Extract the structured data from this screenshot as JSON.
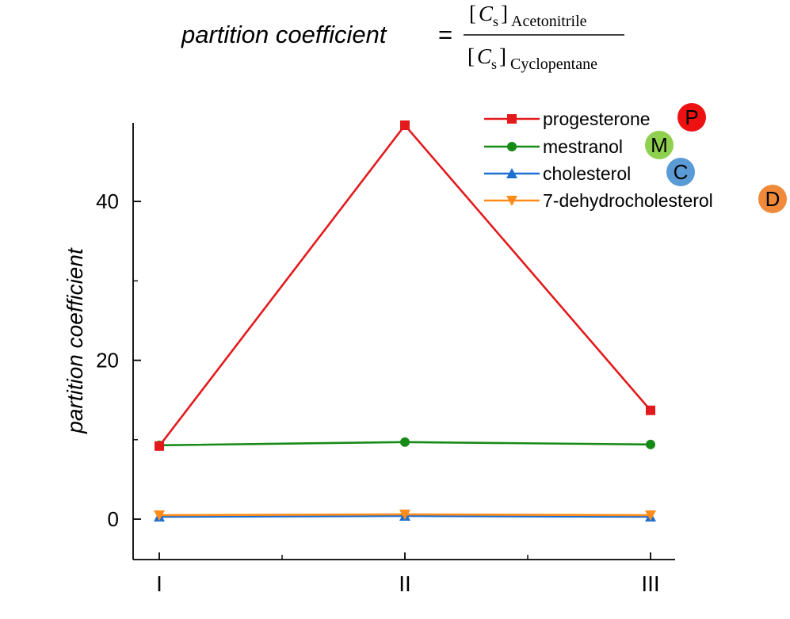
{
  "formula": {
    "lhs": "partition coefficient",
    "equals": "=",
    "numerator_var": "C",
    "numerator_sub": "s",
    "numerator_solvent": "Acetonitrile",
    "denominator_var": "C",
    "denominator_sub": "s",
    "denominator_solvent": "Cyclopentane"
  },
  "chart_data": {
    "type": "line",
    "title": "",
    "xlabel": "",
    "ylabel": "partition coefficient",
    "categories": [
      "I",
      "II",
      "III"
    ],
    "ylim": [
      -5,
      50
    ],
    "yticks": [
      0,
      20,
      40
    ],
    "ytick_labels": [
      "0",
      "20",
      "40"
    ],
    "grid": false,
    "legend_position": "top-right",
    "series": [
      {
        "name": "progesterone",
        "badge": "P",
        "color": "#e31a1c",
        "badge_color": "#ee1111",
        "marker": "square",
        "values": [
          9.2,
          49.6,
          13.7
        ]
      },
      {
        "name": "mestranol",
        "badge": "M",
        "color": "#168a16",
        "badge_color": "#8fd14f",
        "marker": "circle",
        "values": [
          9.3,
          9.7,
          9.4
        ]
      },
      {
        "name": "cholesterol",
        "badge": "C",
        "color": "#1f6fd1",
        "badge_color": "#5b9bd5",
        "marker": "triangle-up",
        "values": [
          0.3,
          0.4,
          0.3
        ]
      },
      {
        "name": "7-dehydrocholesterol",
        "badge": "D",
        "color": "#ff8c1a",
        "badge_color": "#f08a3a",
        "marker": "triangle-down",
        "values": [
          0.5,
          0.6,
          0.5
        ]
      }
    ]
  }
}
